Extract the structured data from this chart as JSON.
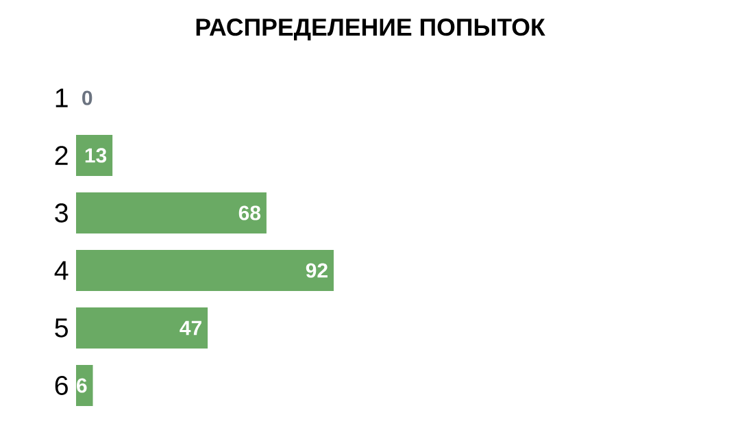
{
  "chart_data": {
    "type": "bar",
    "orientation": "horizontal",
    "title": "РАСПРЕДЕЛЕНИЕ ПОПЫТОК",
    "categories": [
      "1",
      "2",
      "3",
      "4",
      "5",
      "6"
    ],
    "values": [
      0,
      13,
      68,
      92,
      47,
      6
    ],
    "colors": [
      "#6b7380",
      "#6aaa64",
      "#6aaa64",
      "#6aaa64",
      "#6aaa64",
      "#6aaa64"
    ],
    "data_labels": true,
    "tick_labels": "y"
  }
}
